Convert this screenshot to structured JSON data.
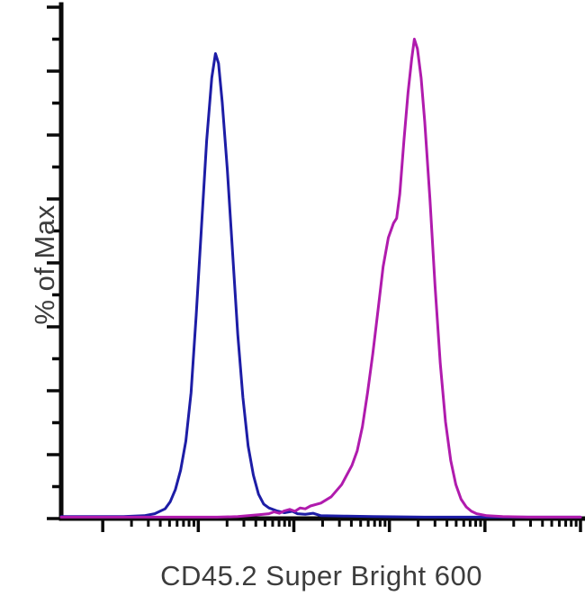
{
  "chart_data": {
    "type": "line",
    "subtype": "flow-cytometry-histogram-overlay",
    "title": "",
    "xlabel": "CD45.2 Super Bright 600",
    "ylabel": "% of Max",
    "legend": "none",
    "grid": false,
    "background_color": "#ffffff",
    "axis_color": "#0a0a0a",
    "label_color": "#3c3c3c",
    "x_axis": {
      "scale": "log",
      "decades": 5,
      "tick_style": "log-minor-clusters"
    },
    "y_axis": {
      "range_percent": [
        0,
        100
      ],
      "tick_count": 17,
      "tick_style": "alternating-major-minor"
    },
    "series": [
      {
        "name": "blue curve (left peak)",
        "color": "#1d1da6",
        "peak_x_percent": 29.8,
        "peak_height_percent": 96,
        "points": [
          [
            0,
            0.4
          ],
          [
            8,
            0.4
          ],
          [
            12,
            0.4
          ],
          [
            16,
            0.6
          ],
          [
            18,
            1
          ],
          [
            20,
            2
          ],
          [
            21,
            3.5
          ],
          [
            22,
            6
          ],
          [
            23,
            10
          ],
          [
            24,
            16
          ],
          [
            25,
            26
          ],
          [
            26,
            42
          ],
          [
            27,
            60
          ],
          [
            28,
            78
          ],
          [
            29,
            91
          ],
          [
            29.7,
            96
          ],
          [
            30.3,
            94
          ],
          [
            31,
            86
          ],
          [
            32,
            72
          ],
          [
            33,
            55
          ],
          [
            34,
            38
          ],
          [
            35,
            25
          ],
          [
            36,
            15
          ],
          [
            37,
            9
          ],
          [
            38,
            5
          ],
          [
            39,
            3
          ],
          [
            40,
            2.2
          ],
          [
            41.5,
            1.6
          ],
          [
            43,
            1.2
          ],
          [
            44.5,
            1.5
          ],
          [
            45.5,
            1.0
          ],
          [
            47,
            0.9
          ],
          [
            48.5,
            1.1
          ],
          [
            50,
            0.6
          ],
          [
            55,
            0.5
          ],
          [
            60,
            0.4
          ],
          [
            70,
            0.3
          ],
          [
            85,
            0.3
          ],
          [
            100,
            0.3
          ]
        ]
      },
      {
        "name": "magenta curve (right peak)",
        "color": "#b01bad",
        "peak_x_percent": 68,
        "peak_height_percent": 99,
        "shoulder": {
          "x_percent": 64,
          "height_percent": 61
        },
        "points": [
          [
            0,
            0.3
          ],
          [
            20,
            0.3
          ],
          [
            30,
            0.3
          ],
          [
            34,
            0.4
          ],
          [
            36,
            0.6
          ],
          [
            38,
            0.8
          ],
          [
            40,
            1.0
          ],
          [
            41,
            1.4
          ],
          [
            42,
            1.1
          ],
          [
            43,
            1.6
          ],
          [
            44,
            1.9
          ],
          [
            45,
            1.5
          ],
          [
            46,
            2.2
          ],
          [
            47,
            2.0
          ],
          [
            48,
            2.6
          ],
          [
            50,
            3.2
          ],
          [
            52,
            4.5
          ],
          [
            54,
            7
          ],
          [
            56,
            11
          ],
          [
            57,
            14
          ],
          [
            58,
            19
          ],
          [
            59,
            26
          ],
          [
            60,
            34
          ],
          [
            61,
            43
          ],
          [
            62,
            52
          ],
          [
            63,
            58
          ],
          [
            64,
            61
          ],
          [
            64.6,
            62
          ],
          [
            65.2,
            67
          ],
          [
            66,
            78
          ],
          [
            66.8,
            88
          ],
          [
            67.5,
            95
          ],
          [
            68,
            99
          ],
          [
            68.6,
            97
          ],
          [
            69.3,
            91
          ],
          [
            70,
            82
          ],
          [
            71,
            66
          ],
          [
            72,
            48
          ],
          [
            73,
            32
          ],
          [
            74,
            20
          ],
          [
            75,
            12
          ],
          [
            76,
            7
          ],
          [
            77,
            4
          ],
          [
            78,
            2.4
          ],
          [
            79,
            1.5
          ],
          [
            80,
            1.0
          ],
          [
            82,
            0.6
          ],
          [
            85,
            0.4
          ],
          [
            90,
            0.3
          ],
          [
            100,
            0.3
          ]
        ]
      }
    ]
  }
}
